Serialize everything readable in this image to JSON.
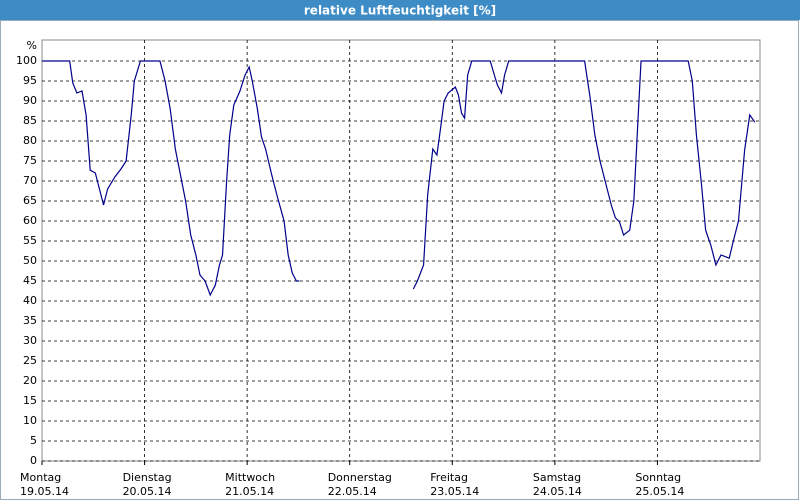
{
  "chart_data": {
    "type": "line",
    "title": "relative Luftfeuchtigkeit [%]",
    "y_unit": "%",
    "xlim": [
      0,
      7
    ],
    "ylim": [
      0,
      100
    ],
    "yticks": [
      0,
      5,
      10,
      15,
      20,
      25,
      30,
      35,
      40,
      45,
      50,
      55,
      60,
      65,
      70,
      75,
      80,
      85,
      90,
      95,
      100
    ],
    "xticks": [
      {
        "value": 0,
        "label": "Montag"
      },
      {
        "value": 1,
        "label": "Dienstag"
      },
      {
        "value": 2,
        "label": "Mittwoch"
      },
      {
        "value": 3,
        "label": "Donnerstag"
      },
      {
        "value": 4,
        "label": "Freitag"
      },
      {
        "value": 5,
        "label": "Samstag"
      },
      {
        "value": 6,
        "label": "Sonntag"
      }
    ],
    "xtick_dates": [
      "19.05.14",
      "20.05.14",
      "21.05.14",
      "22.05.14",
      "23.05.14",
      "24.05.14",
      "25.05.14"
    ],
    "grid": true,
    "series": [
      {
        "color": "#00008b",
        "x": [
          0,
          0.27,
          0.3,
          0.34,
          0.39,
          0.43,
          0.47,
          0.52,
          0.57,
          0.6,
          0.64,
          0.71,
          0.77,
          0.82,
          0.87,
          0.9,
          0.96,
          1.15,
          1.2,
          1.25,
          1.3,
          1.35,
          1.4,
          1.45,
          1.5,
          1.54,
          1.59,
          1.64,
          1.69,
          1.73,
          1.76,
          1.8,
          1.83,
          1.87,
          1.93,
          1.98,
          2.02,
          2.05,
          2.1,
          2.14,
          2.18,
          2.24,
          2.29,
          2.33,
          2.36,
          2.4,
          2.44,
          2.48,
          2.51,
          3.0,
          3.62,
          3.66,
          3.72,
          3.76,
          3.81,
          3.85,
          3.89,
          3.92,
          3.96,
          4.03,
          4.06,
          4.09,
          4.12,
          4.15,
          4.19,
          4.37,
          4.41,
          4.44,
          4.48,
          4.51,
          4.55,
          5.29,
          5.34,
          5.39,
          5.44,
          5.5,
          5.55,
          5.59,
          5.63,
          5.67,
          5.73,
          5.77,
          5.81,
          5.84,
          6.3,
          6.34,
          6.38,
          6.43,
          6.47,
          6.52,
          6.57,
          6.62,
          6.7,
          6.74,
          6.79,
          6.85,
          6.9,
          6.95
        ],
        "values": [
          100,
          100,
          94.5,
          92,
          92.5,
          86.5,
          72.7,
          72,
          67,
          64,
          68,
          71,
          73,
          75,
          86.5,
          95,
          100,
          100,
          95,
          88,
          78,
          71.5,
          65,
          56.5,
          51.5,
          46.5,
          45,
          41.5,
          44,
          49,
          51.5,
          70,
          81.5,
          89,
          92.5,
          96.5,
          98.5,
          95,
          88,
          81,
          78,
          71.5,
          66.5,
          62.8,
          60,
          51.5,
          47,
          45,
          45,
          null,
          43,
          45,
          49,
          66.5,
          78,
          76.5,
          84,
          90,
          92,
          93.5,
          91.5,
          87,
          85.7,
          96.5,
          100,
          100,
          96.5,
          94,
          92,
          96.5,
          100,
          100,
          91.5,
          81.5,
          75,
          69,
          64,
          60.8,
          59.8,
          56.5,
          57.7,
          65,
          85,
          100,
          100,
          95,
          81.5,
          69,
          57.7,
          54,
          49,
          51.5,
          50.7,
          55,
          60,
          77.7,
          86.5,
          84.7
        ]
      }
    ]
  }
}
